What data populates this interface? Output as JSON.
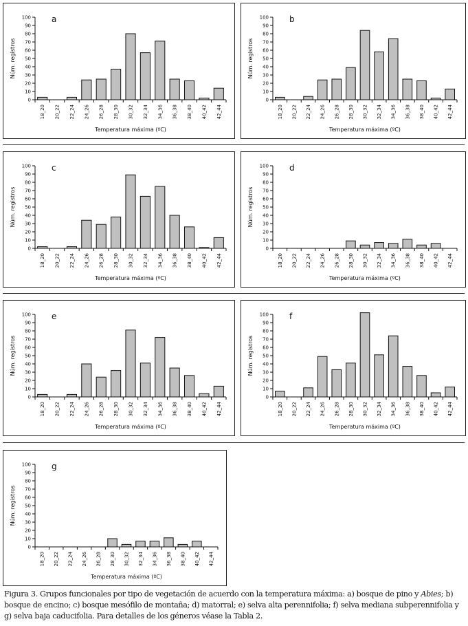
{
  "chart_data": [
    {
      "type": "bar",
      "panel": "a",
      "xlabel": "Temperatura máxima (ºC)",
      "ylabel": "Núm. registros",
      "ylim": [
        0,
        100
      ],
      "yticks": [
        0,
        10,
        20,
        30,
        40,
        50,
        60,
        70,
        80,
        90,
        100
      ],
      "categories": [
        "18_20",
        "20_22",
        "22_24",
        "24_26",
        "26_28",
        "28_30",
        "30_32",
        "32_34",
        "34_36",
        "36_38",
        "38_40",
        "40_42",
        "42_44"
      ],
      "values": [
        3,
        0,
        3,
        24,
        25,
        37,
        80,
        57,
        71,
        25,
        23,
        2,
        14
      ]
    },
    {
      "type": "bar",
      "panel": "b",
      "xlabel": "Temperatura máxima (ºC)",
      "ylabel": "Núm. registros",
      "ylim": [
        0,
        100
      ],
      "yticks": [
        0,
        10,
        20,
        30,
        40,
        50,
        60,
        70,
        80,
        90,
        100
      ],
      "categories": [
        "18_20",
        "20_22",
        "22_24",
        "24_26",
        "26_28",
        "28_30",
        "30_32",
        "32_34",
        "34_36",
        "36_38",
        "38_40",
        "40_42",
        "42_44"
      ],
      "values": [
        3,
        0,
        4,
        24,
        25,
        39,
        84,
        58,
        74,
        25,
        23,
        2,
        13
      ]
    },
    {
      "type": "bar",
      "panel": "c",
      "xlabel": "Temperatura máxima (ºC)",
      "ylabel": "Núm. registros",
      "ylim": [
        0,
        100
      ],
      "yticks": [
        0,
        10,
        20,
        30,
        40,
        50,
        60,
        70,
        80,
        90,
        100
      ],
      "categories": [
        "18_20",
        "20_22",
        "22_24",
        "24_26",
        "26_28",
        "28_30",
        "30_32",
        "32_34",
        "34_36",
        "36_38",
        "38_40",
        "40_42",
        "42_44"
      ],
      "values": [
        2,
        0,
        2,
        34,
        29,
        38,
        89,
        63,
        75,
        40,
        26,
        1,
        13
      ]
    },
    {
      "type": "bar",
      "panel": "d",
      "xlabel": "Temperatura máxima (ºC)",
      "ylabel": "Núm. registros",
      "ylim": [
        0,
        100
      ],
      "yticks": [
        0,
        10,
        20,
        30,
        40,
        50,
        60,
        70,
        80,
        90,
        100
      ],
      "categories": [
        "18_20",
        "20_22",
        "22_24",
        "24_26",
        "26_28",
        "28_30",
        "30_32",
        "32_34",
        "34_36",
        "36_38",
        "38_40",
        "40_42",
        "42_44"
      ],
      "values": [
        0,
        0,
        0,
        0,
        0,
        9,
        4,
        7,
        6,
        11,
        4,
        6,
        0
      ]
    },
    {
      "type": "bar",
      "panel": "e",
      "xlabel": "Temperatura máxima (ºC)",
      "ylabel": "Núm. registros",
      "ylim": [
        0,
        100
      ],
      "yticks": [
        0,
        10,
        20,
        30,
        40,
        50,
        60,
        70,
        80,
        90,
        100
      ],
      "categories": [
        "18_20",
        "20_22",
        "22_24",
        "24_26",
        "26_28",
        "28_30",
        "30_32",
        "32_34",
        "34_36",
        "36_38",
        "38_40",
        "40_42",
        "42_44"
      ],
      "values": [
        3,
        0,
        3,
        40,
        24,
        32,
        81,
        41,
        72,
        35,
        26,
        4,
        13
      ]
    },
    {
      "type": "bar",
      "panel": "f",
      "xlabel": "Temperatura máxima (ºC)",
      "ylabel": "Núm. registros",
      "ylim": [
        0,
        100
      ],
      "yticks": [
        0,
        10,
        20,
        30,
        40,
        50,
        60,
        70,
        80,
        90,
        100
      ],
      "categories": [
        "18_20",
        "20_22",
        "22_24",
        "24_26",
        "26_28",
        "28_30",
        "30_32",
        "32_34",
        "34_36",
        "36_38",
        "38_40",
        "40_42",
        "42_44"
      ],
      "values": [
        7,
        0,
        11,
        49,
        33,
        41,
        102,
        51,
        74,
        37,
        26,
        5,
        12
      ]
    },
    {
      "type": "bar",
      "panel": "g",
      "xlabel": "Temperatura máxima (ºC)",
      "ylabel": "Núm. registros",
      "ylim": [
        0,
        100
      ],
      "yticks": [
        0,
        10,
        20,
        30,
        40,
        50,
        60,
        70,
        80,
        90,
        100
      ],
      "categories": [
        "18_20",
        "20_22",
        "22_24",
        "24_26",
        "26_28",
        "28_30",
        "30_32",
        "32_34",
        "34_36",
        "36_38",
        "38_40",
        "40_42",
        "42_44"
      ],
      "values": [
        0,
        0,
        0,
        0,
        0,
        10,
        3,
        7,
        7,
        11,
        3,
        7,
        0
      ]
    }
  ],
  "colors": {
    "bar_fill": "#c0c0c0",
    "bar_stroke": "#111111"
  },
  "caption": {
    "part1": "Figura 3. Grupos funcionales por tipo de vegetación de acuerdo con la temperatura máxima: a) bosque de pino y ",
    "italic": "Abies",
    "part2": "; b) bosque de encino; c) bosque mesófilo de montaña; d) matorral; e) selva alta perennifolia; f) selva mediana subperennifolia y g) selva baja caducifolia. Para detalles de los géneros véase la Tabla 2."
  }
}
